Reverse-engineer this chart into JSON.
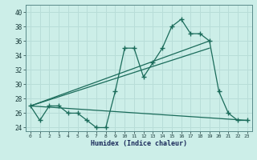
{
  "title": "",
  "xlabel": "Humidex (Indice chaleur)",
  "bg_color": "#cceee8",
  "grid_color": "#b8ddd8",
  "line_color": "#1a6b5a",
  "x_values": [
    0,
    1,
    2,
    3,
    4,
    5,
    6,
    7,
    8,
    9,
    10,
    11,
    12,
    13,
    14,
    15,
    16,
    17,
    18,
    19,
    20,
    21,
    22,
    23
  ],
  "series1": [
    27,
    25,
    27,
    27,
    26,
    26,
    25,
    24,
    24,
    29,
    35,
    35,
    31,
    33,
    35,
    38,
    39,
    37,
    37,
    36,
    29,
    26,
    25,
    25
  ],
  "series2_x": [
    0,
    19
  ],
  "series2_y": [
    27,
    36
  ],
  "series3_x": [
    0,
    19
  ],
  "series3_y": [
    27,
    35
  ],
  "series4_x": [
    0,
    23
  ],
  "series4_y": [
    27,
    25
  ],
  "ylim": [
    23.5,
    41
  ],
  "xlim": [
    -0.5,
    23.5
  ],
  "yticks": [
    24,
    26,
    28,
    30,
    32,
    34,
    36,
    38,
    40
  ],
  "xticks": [
    0,
    1,
    2,
    3,
    4,
    5,
    6,
    7,
    8,
    9,
    10,
    11,
    12,
    13,
    14,
    15,
    16,
    17,
    18,
    19,
    20,
    21,
    22,
    23
  ]
}
